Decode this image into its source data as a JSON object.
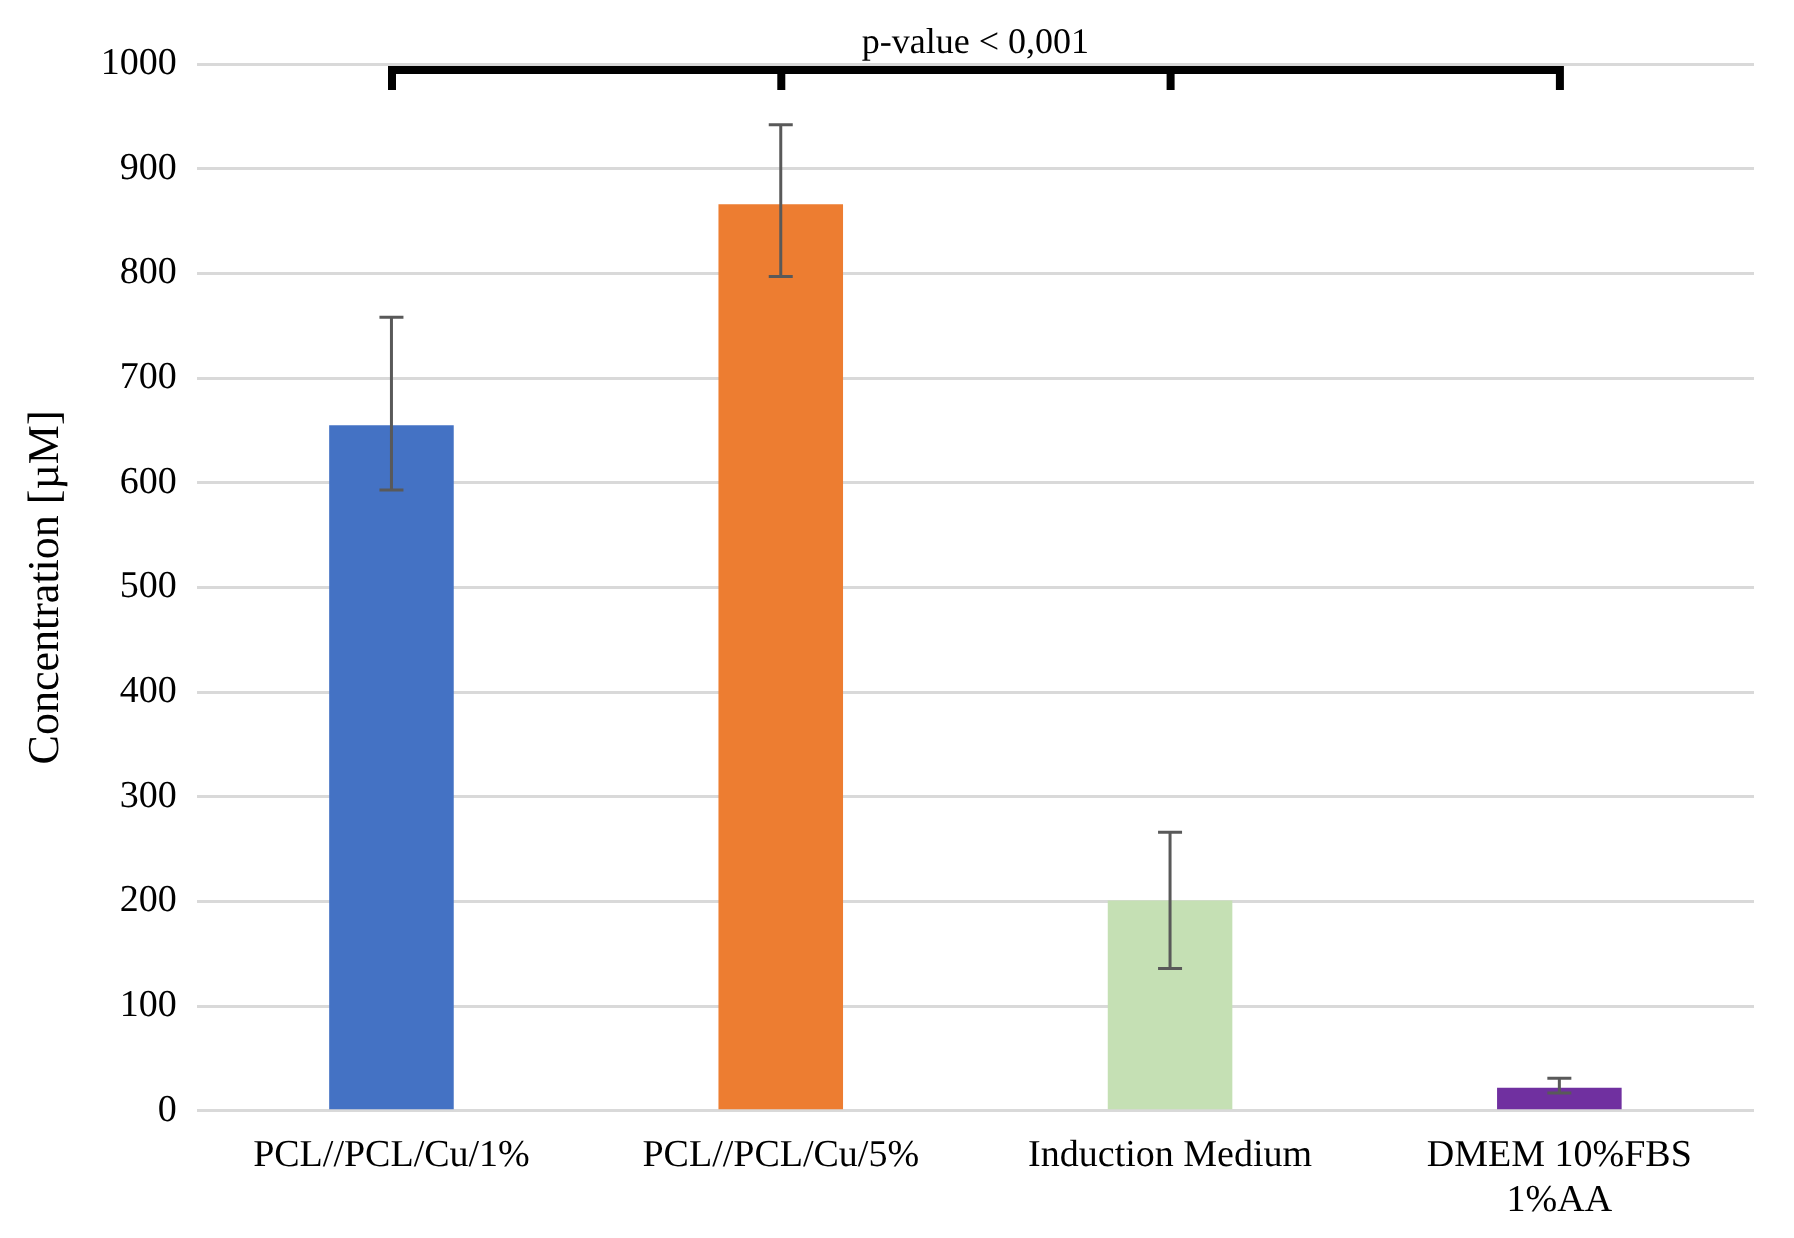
{
  "chart_data": {
    "type": "bar",
    "ylabel": "Concentration [µM]",
    "categories": [
      "PCL//PCL/Cu/1%",
      "PCL//PCL/Cu/5%",
      "Induction Medium",
      "DMEM 10%FBS\n1%AA"
    ],
    "values": [
      655,
      866,
      201,
      22
    ],
    "colors": [
      "#4472c4",
      "#ed7d31",
      "#c5e0b4",
      "#7030a0"
    ],
    "errors": [
      [
        593,
        758
      ],
      [
        797,
        942
      ],
      [
        136,
        266
      ],
      [
        17,
        31
      ]
    ],
    "ylim": [
      0,
      1000
    ],
    "yticks": [
      0,
      100,
      200,
      300,
      400,
      500,
      600,
      700,
      800,
      900,
      1000
    ],
    "grid": "y",
    "legend": false,
    "annotations": [
      "p-value < 0,001"
    ]
  }
}
